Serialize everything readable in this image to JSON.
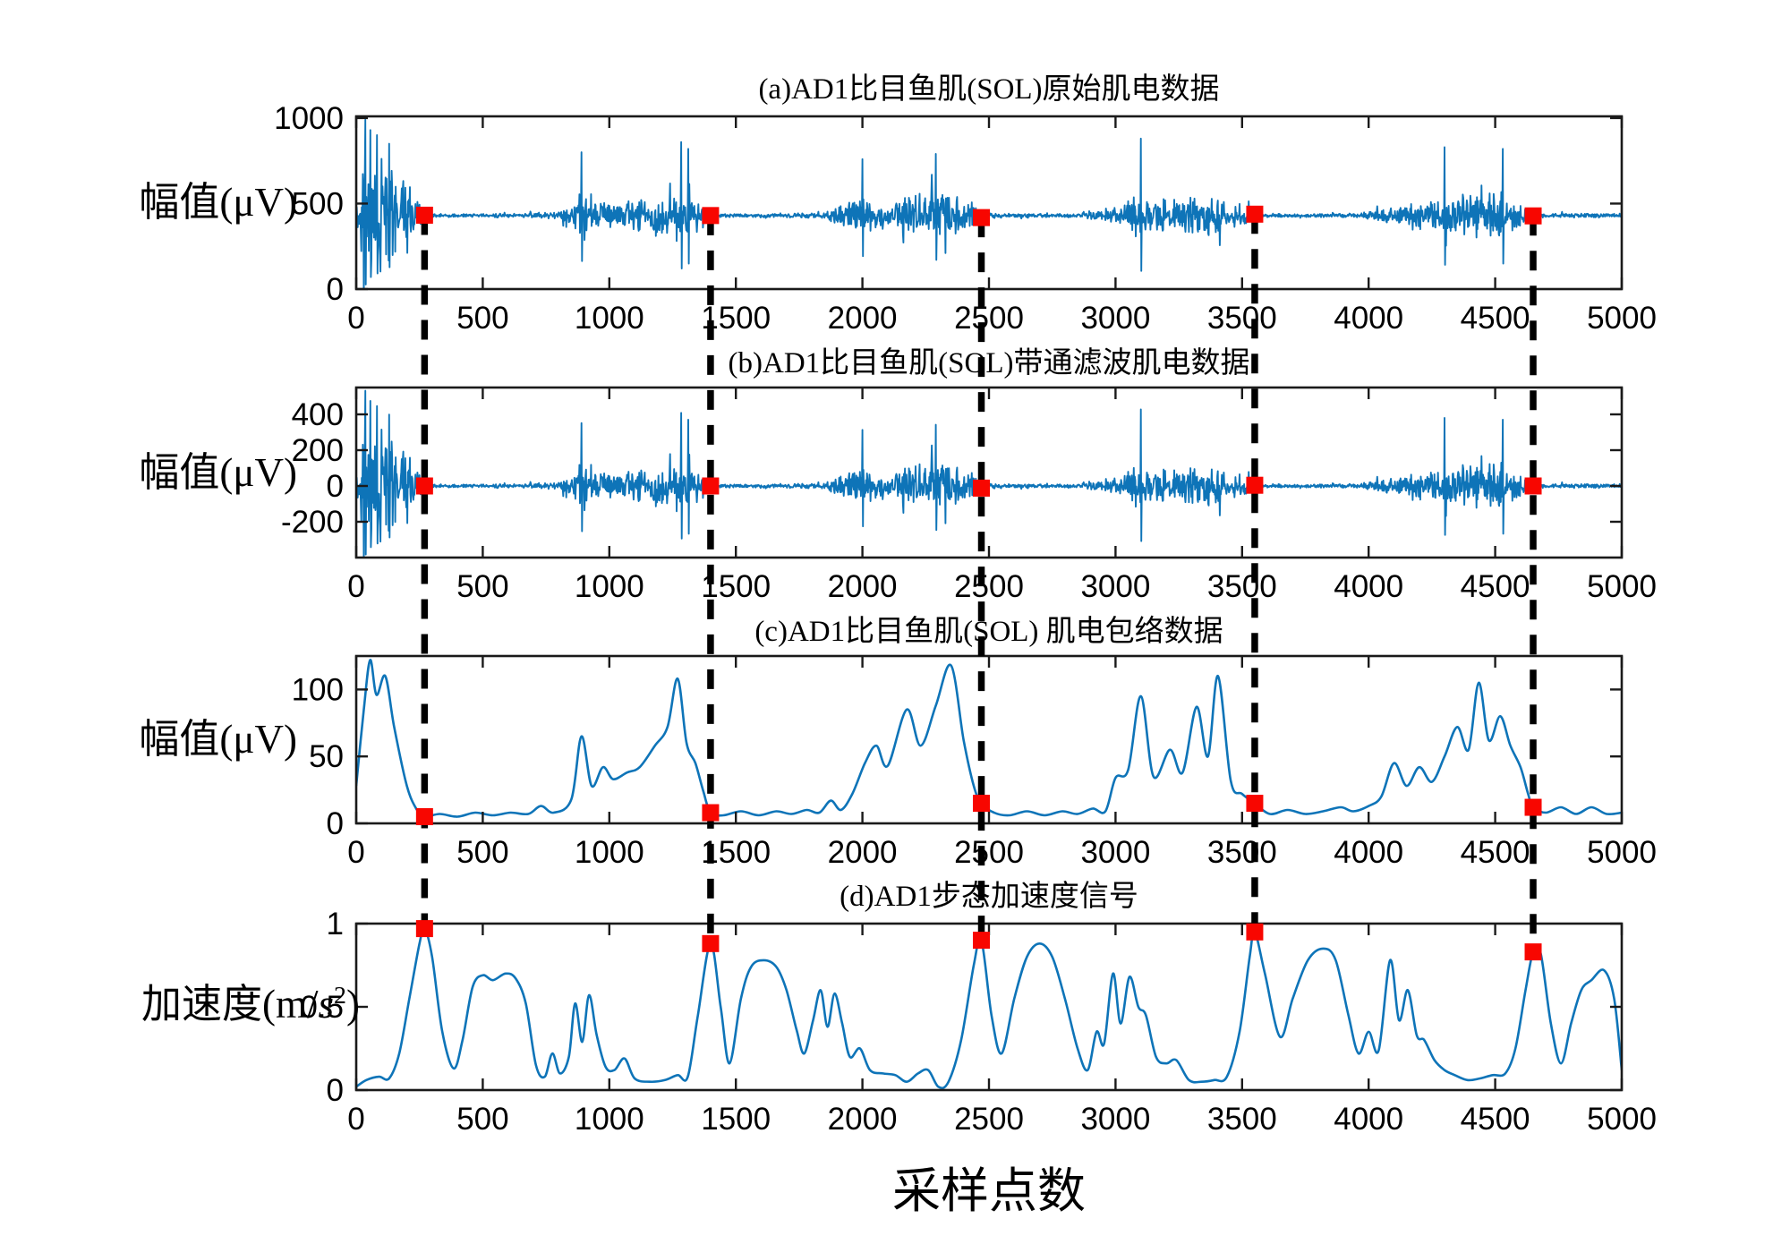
{
  "figure": {
    "x_label": "采样点数",
    "xlim": [
      0,
      5000
    ],
    "x_ticks": [
      0,
      500,
      1000,
      1500,
      2000,
      2500,
      3000,
      3500,
      4000,
      4500,
      5000
    ],
    "event_lines_x": [
      270,
      1400,
      2470,
      3550,
      4650
    ],
    "colors": {
      "signal": "#0e74b8",
      "marker": "#f80600",
      "dash": "#000000",
      "axis": "#1a1a1a",
      "text": "#000000",
      "background": "#ffffff"
    },
    "emg_envelope": [
      [
        0,
        120
      ],
      [
        25,
        300
      ],
      [
        60,
        330
      ],
      [
        120,
        300
      ],
      [
        200,
        210
      ],
      [
        245,
        100
      ],
      [
        268,
        20
      ],
      [
        300,
        11
      ],
      [
        500,
        10
      ],
      [
        700,
        12
      ],
      [
        800,
        20
      ],
      [
        860,
        70
      ],
      [
        900,
        120
      ],
      [
        940,
        70
      ],
      [
        1000,
        72
      ],
      [
        1080,
        85
      ],
      [
        1150,
        100
      ],
      [
        1220,
        130
      ],
      [
        1290,
        165
      ],
      [
        1340,
        110
      ],
      [
        1385,
        45
      ],
      [
        1405,
        14
      ],
      [
        1500,
        10
      ],
      [
        1700,
        11
      ],
      [
        1850,
        18
      ],
      [
        1930,
        70
      ],
      [
        1990,
        105
      ],
      [
        2060,
        75
      ],
      [
        2150,
        95
      ],
      [
        2250,
        120
      ],
      [
        2330,
        135
      ],
      [
        2400,
        90
      ],
      [
        2455,
        40
      ],
      [
        2475,
        14
      ],
      [
        2600,
        10
      ],
      [
        2800,
        11
      ],
      [
        2950,
        25
      ],
      [
        3020,
        70
      ],
      [
        3090,
        115
      ],
      [
        3160,
        80
      ],
      [
        3260,
        95
      ],
      [
        3360,
        115
      ],
      [
        3440,
        100
      ],
      [
        3515,
        50
      ],
      [
        3555,
        14
      ],
      [
        3700,
        10
      ],
      [
        3950,
        12
      ],
      [
        4080,
        45
      ],
      [
        4180,
        70
      ],
      [
        4280,
        95
      ],
      [
        4380,
        110
      ],
      [
        4480,
        125
      ],
      [
        4560,
        100
      ],
      [
        4625,
        50
      ],
      [
        4655,
        14
      ],
      [
        4800,
        11
      ],
      [
        5000,
        11
      ]
    ],
    "emg_spikes": [
      [
        35,
        560
      ],
      [
        55,
        500
      ],
      [
        82,
        470
      ],
      [
        130,
        420
      ],
      [
        890,
        370
      ],
      [
        1283,
        430
      ],
      [
        1312,
        390
      ],
      [
        2000,
        330
      ],
      [
        2290,
        360
      ],
      [
        3100,
        450
      ],
      [
        4300,
        400
      ],
      [
        4530,
        390
      ]
    ]
  },
  "chart_data": [
    {
      "id": "a",
      "type": "line",
      "title": "(a)AD1比目鱼肌(SOL)原始肌电数据",
      "ylabel": "幅值(μV)",
      "xlabel": "",
      "series_kind": "raw_emg_noise",
      "yticks": [
        0,
        500,
        1000
      ],
      "ylim": [
        0,
        1010
      ],
      "xlim": [
        0,
        5000
      ],
      "grid": false,
      "baseline": 430,
      "amp_scale": 1,
      "noise_seed": 11,
      "markers": [
        [
          270,
          432
        ],
        [
          1400,
          430
        ],
        [
          2470,
          418
        ],
        [
          3550,
          438
        ],
        [
          4650,
          428
        ]
      ]
    },
    {
      "id": "b",
      "type": "line",
      "title": "(b)AD1比目鱼肌(SOL)带通滤波肌电数据",
      "ylabel": "幅值(μV)",
      "xlabel": "",
      "series_kind": "filtered_emg_noise",
      "yticks": [
        -200,
        0,
        200,
        400
      ],
      "ylim": [
        -400,
        550
      ],
      "xlim": [
        0,
        5000
      ],
      "grid": false,
      "baseline": 0,
      "amp_scale": 0.95,
      "noise_seed": 11,
      "markers": [
        [
          270,
          0
        ],
        [
          1400,
          0
        ],
        [
          2470,
          -12
        ],
        [
          3550,
          4
        ],
        [
          4650,
          0
        ]
      ]
    },
    {
      "id": "c",
      "type": "line",
      "title": "(c)AD1比目鱼肌(SOL) 肌电包络数据",
      "ylabel": "幅值(μV)",
      "xlabel": "",
      "series_kind": "envelope_curve",
      "yticks": [
        0,
        50,
        100
      ],
      "ylim": [
        0,
        125
      ],
      "xlim": [
        0,
        5000
      ],
      "grid": false,
      "points": [
        [
          0,
          28
        ],
        [
          30,
          85
        ],
        [
          55,
          122
        ],
        [
          80,
          96
        ],
        [
          115,
          110
        ],
        [
          150,
          72
        ],
        [
          200,
          28
        ],
        [
          240,
          10
        ],
        [
          270,
          5
        ],
        [
          330,
          7
        ],
        [
          400,
          5
        ],
        [
          470,
          8
        ],
        [
          540,
          6
        ],
        [
          610,
          8
        ],
        [
          680,
          7
        ],
        [
          730,
          13
        ],
        [
          780,
          8
        ],
        [
          850,
          18
        ],
        [
          890,
          65
        ],
        [
          930,
          28
        ],
        [
          975,
          42
        ],
        [
          1015,
          33
        ],
        [
          1070,
          38
        ],
        [
          1120,
          42
        ],
        [
          1180,
          58
        ],
        [
          1230,
          72
        ],
        [
          1270,
          108
        ],
        [
          1305,
          60
        ],
        [
          1340,
          45
        ],
        [
          1370,
          25
        ],
        [
          1400,
          8
        ],
        [
          1450,
          6
        ],
        [
          1520,
          9
        ],
        [
          1590,
          6
        ],
        [
          1660,
          9
        ],
        [
          1720,
          7
        ],
        [
          1780,
          10
        ],
        [
          1830,
          8
        ],
        [
          1875,
          17
        ],
        [
          1915,
          10
        ],
        [
          1960,
          22
        ],
        [
          2010,
          45
        ],
        [
          2055,
          58
        ],
        [
          2100,
          43
        ],
        [
          2175,
          85
        ],
        [
          2230,
          58
        ],
        [
          2290,
          88
        ],
        [
          2350,
          118
        ],
        [
          2400,
          62
        ],
        [
          2440,
          28
        ],
        [
          2470,
          15
        ],
        [
          2520,
          8
        ],
        [
          2580,
          6
        ],
        [
          2650,
          9
        ],
        [
          2720,
          6
        ],
        [
          2790,
          9
        ],
        [
          2850,
          7
        ],
        [
          2910,
          11
        ],
        [
          2960,
          9
        ],
        [
          3000,
          34
        ],
        [
          3050,
          40
        ],
        [
          3100,
          95
        ],
        [
          3150,
          35
        ],
        [
          3215,
          55
        ],
        [
          3265,
          38
        ],
        [
          3320,
          87
        ],
        [
          3365,
          50
        ],
        [
          3405,
          110
        ],
        [
          3455,
          32
        ],
        [
          3500,
          22
        ],
        [
          3550,
          15
        ],
        [
          3610,
          7
        ],
        [
          3680,
          10
        ],
        [
          3750,
          7
        ],
        [
          3820,
          9
        ],
        [
          3890,
          12
        ],
        [
          3940,
          9
        ],
        [
          4000,
          13
        ],
        [
          4050,
          20
        ],
        [
          4100,
          45
        ],
        [
          4150,
          28
        ],
        [
          4200,
          42
        ],
        [
          4250,
          31
        ],
        [
          4300,
          50
        ],
        [
          4350,
          72
        ],
        [
          4395,
          55
        ],
        [
          4435,
          105
        ],
        [
          4475,
          62
        ],
        [
          4520,
          80
        ],
        [
          4560,
          58
        ],
        [
          4600,
          42
        ],
        [
          4630,
          22
        ],
        [
          4650,
          12
        ],
        [
          4700,
          8
        ],
        [
          4760,
          12
        ],
        [
          4820,
          7
        ],
        [
          4880,
          12
        ],
        [
          4940,
          7
        ],
        [
          5000,
          8
        ]
      ],
      "markers": [
        [
          270,
          5
        ],
        [
          1400,
          8
        ],
        [
          2470,
          15
        ],
        [
          3550,
          15
        ],
        [
          4650,
          12
        ]
      ]
    },
    {
      "id": "d",
      "type": "line",
      "title": "(d)AD1步态加速度信号",
      "ylabel": "加速度(m/s²)",
      "ylabel_parts": {
        "prefix": "加速度(m/",
        "italic": "s",
        "sup": "2",
        "suffix": ")"
      },
      "xlabel": "",
      "series_kind": "acceleration_curve",
      "yticks": [
        0,
        0.5,
        1
      ],
      "ylim": [
        0,
        1
      ],
      "xlim": [
        0,
        5000
      ],
      "grid": false,
      "points": [
        [
          0,
          0.02
        ],
        [
          40,
          0.06
        ],
        [
          90,
          0.08
        ],
        [
          130,
          0.07
        ],
        [
          170,
          0.22
        ],
        [
          210,
          0.55
        ],
        [
          250,
          0.88
        ],
        [
          270,
          0.97
        ],
        [
          300,
          0.8
        ],
        [
          340,
          0.35
        ],
        [
          385,
          0.13
        ],
        [
          420,
          0.3
        ],
        [
          460,
          0.62
        ],
        [
          500,
          0.69
        ],
        [
          540,
          0.66
        ],
        [
          590,
          0.7
        ],
        [
          630,
          0.67
        ],
        [
          670,
          0.52
        ],
        [
          710,
          0.15
        ],
        [
          745,
          0.08
        ],
        [
          775,
          0.22
        ],
        [
          805,
          0.1
        ],
        [
          840,
          0.2
        ],
        [
          865,
          0.52
        ],
        [
          893,
          0.29
        ],
        [
          920,
          0.57
        ],
        [
          950,
          0.33
        ],
        [
          985,
          0.14
        ],
        [
          1020,
          0.12
        ],
        [
          1060,
          0.19
        ],
        [
          1100,
          0.07
        ],
        [
          1160,
          0.05
        ],
        [
          1220,
          0.06
        ],
        [
          1270,
          0.09
        ],
        [
          1310,
          0.08
        ],
        [
          1350,
          0.45
        ],
        [
          1400,
          0.88
        ],
        [
          1440,
          0.5
        ],
        [
          1475,
          0.16
        ],
        [
          1520,
          0.55
        ],
        [
          1560,
          0.74
        ],
        [
          1610,
          0.78
        ],
        [
          1660,
          0.74
        ],
        [
          1700,
          0.6
        ],
        [
          1740,
          0.36
        ],
        [
          1770,
          0.22
        ],
        [
          1805,
          0.42
        ],
        [
          1835,
          0.6
        ],
        [
          1862,
          0.38
        ],
        [
          1890,
          0.58
        ],
        [
          1920,
          0.4
        ],
        [
          1950,
          0.2
        ],
        [
          1990,
          0.25
        ],
        [
          2030,
          0.12
        ],
        [
          2080,
          0.1
        ],
        [
          2130,
          0.09
        ],
        [
          2175,
          0.05
        ],
        [
          2220,
          0.1
        ],
        [
          2260,
          0.12
        ],
        [
          2300,
          0.02
        ],
        [
          2340,
          0.05
        ],
        [
          2390,
          0.3
        ],
        [
          2440,
          0.75
        ],
        [
          2470,
          0.9
        ],
        [
          2510,
          0.45
        ],
        [
          2550,
          0.22
        ],
        [
          2600,
          0.55
        ],
        [
          2650,
          0.8
        ],
        [
          2700,
          0.88
        ],
        [
          2750,
          0.8
        ],
        [
          2800,
          0.55
        ],
        [
          2850,
          0.25
        ],
        [
          2890,
          0.12
        ],
        [
          2925,
          0.35
        ],
        [
          2955,
          0.28
        ],
        [
          2990,
          0.7
        ],
        [
          3020,
          0.4
        ],
        [
          3055,
          0.68
        ],
        [
          3090,
          0.5
        ],
        [
          3120,
          0.45
        ],
        [
          3160,
          0.2
        ],
        [
          3200,
          0.16
        ],
        [
          3240,
          0.18
        ],
        [
          3290,
          0.06
        ],
        [
          3340,
          0.05
        ],
        [
          3390,
          0.06
        ],
        [
          3440,
          0.08
        ],
        [
          3490,
          0.35
        ],
        [
          3530,
          0.8
        ],
        [
          3550,
          0.95
        ],
        [
          3590,
          0.7
        ],
        [
          3650,
          0.32
        ],
        [
          3700,
          0.55
        ],
        [
          3760,
          0.78
        ],
        [
          3820,
          0.85
        ],
        [
          3870,
          0.78
        ],
        [
          3920,
          0.45
        ],
        [
          3960,
          0.22
        ],
        [
          4000,
          0.35
        ],
        [
          4040,
          0.24
        ],
        [
          4085,
          0.78
        ],
        [
          4120,
          0.42
        ],
        [
          4155,
          0.6
        ],
        [
          4190,
          0.33
        ],
        [
          4220,
          0.3
        ],
        [
          4260,
          0.18
        ],
        [
          4300,
          0.12
        ],
        [
          4340,
          0.09
        ],
        [
          4390,
          0.06
        ],
        [
          4440,
          0.07
        ],
        [
          4490,
          0.09
        ],
        [
          4540,
          0.1
        ],
        [
          4580,
          0.25
        ],
        [
          4620,
          0.6
        ],
        [
          4650,
          0.83
        ],
        [
          4680,
          0.82
        ],
        [
          4720,
          0.4
        ],
        [
          4760,
          0.16
        ],
        [
          4800,
          0.4
        ],
        [
          4840,
          0.6
        ],
        [
          4880,
          0.66
        ],
        [
          4930,
          0.72
        ],
        [
          4970,
          0.55
        ],
        [
          5000,
          0.12
        ]
      ],
      "markers": [
        [
          270,
          0.97
        ],
        [
          1400,
          0.88
        ],
        [
          2470,
          0.9
        ],
        [
          3550,
          0.95
        ],
        [
          4650,
          0.83
        ]
      ]
    }
  ]
}
